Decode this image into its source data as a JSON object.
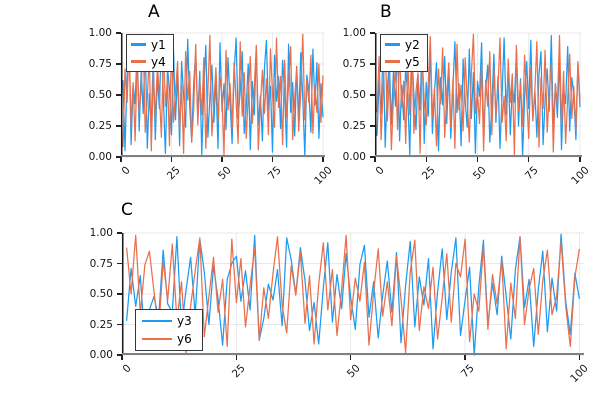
{
  "figure": {
    "background": "#ffffff",
    "grid_color": "#e9e9e9",
    "axis_color": "#222222",
    "bottom_spine_color": "#808080"
  },
  "chart_data": [
    {
      "id": "A",
      "type": "line",
      "title": "A",
      "xlim": [
        0,
        101
      ],
      "ylim": [
        0,
        1
      ],
      "xticks": [
        "0",
        "25",
        "50",
        "75",
        "100"
      ],
      "xtick_values": [
        0,
        25,
        50,
        75,
        100
      ],
      "yticks": [
        "0.00",
        "0.25",
        "0.50",
        "0.75",
        "1.00"
      ],
      "ytick_values": [
        0,
        0.25,
        0.5,
        0.75,
        1
      ],
      "legend_position": "top-left",
      "grid": "on",
      "y_encoding": "percent_of_axis_divide_by_100",
      "series": [
        {
          "name": "y1",
          "color": "#1E9BF0",
          "y_pct": [
            62,
            5,
            66,
            97,
            10,
            58,
            43,
            88,
            21,
            70,
            35,
            93,
            7,
            51,
            27,
            81,
            14,
            64,
            39,
            99,
            46,
            3,
            72,
            55,
            18,
            86,
            30,
            67,
            9,
            77,
            50,
            24,
            95,
            41,
            12,
            60,
            83,
            33,
            69,
            2,
            56,
            90,
            16,
            48,
            74,
            28,
            63,
            7,
            92,
            37,
            59,
            22,
            80,
            44,
            11,
            68,
            96,
            31,
            53,
            85,
            19,
            40,
            75,
            6,
            61,
            34,
            89,
            26,
            49,
            13,
            71,
            94,
            38,
            57,
            4,
            82,
            45,
            65,
            23,
            78,
            52,
            8,
            91,
            36,
            60,
            17,
            73,
            29,
            84,
            47,
            1,
            66,
            54,
            20,
            87,
            42,
            76,
            15,
            59,
            32
          ]
        },
        {
          "name": "y4",
          "color": "#E8704D",
          "y_pct": [
            8,
            71,
            44,
            92,
            25,
            60,
            13,
            79,
            36,
            55,
            97,
            20,
            48,
            83,
            5,
            67,
            31,
            74,
            50,
            16,
            88,
            41,
            63,
            9,
            95,
            28,
            52,
            77,
            22,
            58,
            3,
            85,
            46,
            69,
            12,
            39,
            91,
            26,
            61,
            34,
            80,
            7,
            54,
            98,
            17,
            43,
            72,
            29,
            64,
            50,
            2,
            86,
            38,
            59,
            23,
            76,
            45,
            11,
            93,
            33,
            68,
            15,
            49,
            81,
            27,
            56,
            90,
            6,
            42,
            70,
            35,
            63,
            18,
            87,
            51,
            24,
            96,
            40,
            65,
            10,
            78,
            32,
            58,
            89,
            14,
            47,
            73,
            21,
            53,
            99,
            30,
            62,
            44,
            82,
            19,
            57,
            36,
            75,
            28,
            66
          ]
        }
      ]
    },
    {
      "id": "B",
      "type": "line",
      "title": "B",
      "xlim": [
        0,
        101
      ],
      "ylim": [
        0,
        1
      ],
      "xticks": [
        "0",
        "25",
        "50",
        "75",
        "100"
      ],
      "xtick_values": [
        0,
        25,
        50,
        75,
        100
      ],
      "yticks": [
        "0.00",
        "0.25",
        "0.50",
        "0.75",
        "1.00"
      ],
      "ytick_values": [
        0,
        0.25,
        0.5,
        0.75,
        1
      ],
      "legend_position": "top-left",
      "grid": "on",
      "y_encoding": "percent_of_axis_divide_by_100",
      "series": [
        {
          "name": "y2",
          "color": "#1E9BF0",
          "y_pct": [
            17,
            62,
            35,
            90,
            8,
            54,
            78,
            26,
            69,
            41,
            95,
            13,
            58,
            30,
            73,
            47,
            2,
            84,
            50,
            22,
            66,
            38,
            97,
            11,
            60,
            33,
            88,
            19,
            52,
            76,
            5,
            64,
            42,
            81,
            27,
            70,
            15,
            56,
            93,
            36,
            59,
            9,
            79,
            45,
            24,
            87,
            31,
            68,
            3,
            61,
            49,
            92,
            20,
            55,
            74,
            12,
            40,
            83,
            28,
            65,
            7,
            51,
            96,
            34,
            72,
            18,
            57,
            44,
            86,
            25,
            63,
            1,
            48,
            77,
            39,
            94,
            29,
            53,
            16,
            67,
            85,
            10,
            46,
            71,
            37,
            98,
            23,
            59,
            32,
            80,
            6,
            55,
            43,
            89,
            21,
            64,
            50,
            14,
            75,
            40
          ]
        },
        {
          "name": "y5",
          "color": "#E8704D",
          "y_pct": [
            36,
            81,
            14,
            57,
            92,
            29,
            65,
            6,
            48,
            73,
            22,
            87,
            40,
            61,
            11,
            78,
            34,
            95,
            19,
            53,
            68,
            3,
            84,
            45,
            26,
            60,
            97,
            32,
            55,
            9,
            71,
            43,
            88,
            16,
            50,
            76,
            24,
            63,
            7,
            91,
            38,
            58,
            21,
            80,
            46,
            12,
            66,
            99,
            35,
            52,
            27,
            74,
            5,
            62,
            41,
            85,
            18,
            70,
            33,
            56,
            96,
            28,
            49,
            13,
            79,
            44,
            67,
            2,
            90,
            37,
            60,
            25,
            82,
            48,
            15,
            72,
            30,
            54,
            93,
            8,
            64,
            39,
            86,
            20,
            51,
            75,
            4,
            59,
            42,
            98,
            26,
            69,
            11,
            47,
            83,
            31,
            57,
            22,
            77,
            45
          ]
        }
      ]
    },
    {
      "id": "C",
      "type": "line",
      "title": "C",
      "xlim": [
        0,
        101
      ],
      "ylim": [
        0,
        1
      ],
      "xticks": [
        "0",
        "25",
        "50",
        "75",
        "100"
      ],
      "xtick_values": [
        0,
        25,
        50,
        75,
        100
      ],
      "yticks": [
        "0.00",
        "0.25",
        "0.50",
        "0.75",
        "1.00"
      ],
      "ytick_values": [
        0,
        0.25,
        0.5,
        0.75,
        1
      ],
      "legend_position": "bottom-left",
      "grid": "on",
      "y_encoding": "percent_of_axis_divide_by_100",
      "series": [
        {
          "name": "y3",
          "color": "#1E9BF0",
          "y_pct": [
            28,
            71,
            40,
            65,
            11,
            37,
            48,
            30,
            86,
            42,
            35,
            97,
            22,
            53,
            80,
            33,
            95,
            68,
            25,
            73,
            46,
            8,
            62,
            75,
            81,
            44,
            69,
            37,
            98,
            12,
            30,
            58,
            45,
            70,
            24,
            96,
            78,
            50,
            88,
            61,
            20,
            43,
            9,
            55,
            92,
            27,
            66,
            38,
            83,
            47,
            21,
            74,
            90,
            31,
            60,
            14,
            49,
            77,
            35,
            84,
            10,
            57,
            93,
            23,
            64,
            41,
            79,
            5,
            52,
            87,
            29,
            68,
            96,
            16,
            45,
            72,
            0,
            56,
            94,
            25,
            59,
            33,
            81,
            48,
            13,
            70,
            97,
            39,
            62,
            7,
            54,
            85,
            19,
            63,
            36,
            99,
            44,
            17,
            67,
            46
          ]
        },
        {
          "name": "y6",
          "color": "#E8704D",
          "y_pct": [
            88,
            50,
            98,
            34,
            74,
            85,
            52,
            19,
            77,
            45,
            91,
            28,
            60,
            1,
            40,
            69,
            96,
            15,
            48,
            80,
            35,
            62,
            7,
            95,
            43,
            79,
            23,
            57,
            88,
            12,
            55,
            30,
            67,
            97,
            41,
            18,
            73,
            49,
            84,
            26,
            65,
            9,
            58,
            92,
            37,
            70,
            16,
            53,
            98,
            29,
            63,
            44,
            76,
            8,
            51,
            87,
            32,
            60,
            24,
            81,
            46,
            2,
            68,
            94,
            20,
            56,
            38,
            72,
            13,
            47,
            83,
            27,
            75,
            64,
            95,
            11,
            50,
            36,
            89,
            21,
            66,
            42,
            78,
            5,
            59,
            30,
            97,
            25,
            54,
            71,
            17,
            61,
            86,
            33,
            48,
            93,
            40,
            7,
            64,
            87
          ]
        }
      ]
    }
  ]
}
